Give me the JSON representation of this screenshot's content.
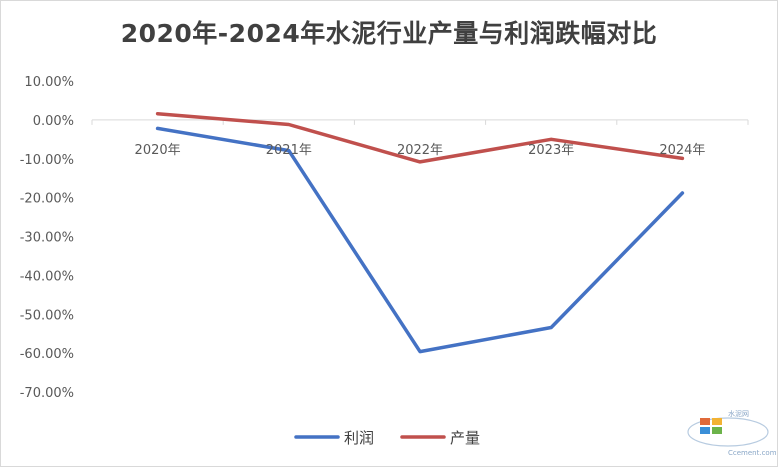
{
  "chart_data": {
    "type": "line",
    "title": "2020年-2024年水泥行业产量与利润跌幅对比",
    "categories": [
      "2020年",
      "2021年",
      "2022年",
      "2023年",
      "2024年"
    ],
    "series": [
      {
        "name": "利润",
        "values": [
          -2.2,
          -7.9,
          -59.6,
          -53.4,
          -18.8
        ]
      },
      {
        "name": "产量",
        "values": [
          1.6,
          -1.2,
          -10.8,
          -5.0,
          -9.9
        ]
      }
    ],
    "yticks": [
      "10.00%",
      "0.00%",
      "-10.00%",
      "-20.00%",
      "-30.00%",
      "-40.00%",
      "-50.00%",
      "-60.00%",
      "-70.00%"
    ],
    "ylim": [
      -70,
      10
    ],
    "grid": false,
    "legend": "bottom",
    "colors": {
      "利润": "#4472C4",
      "产量": "#C0504D"
    }
  },
  "watermark": {
    "line1": "水泥网",
    "line2": "Ccement.com"
  }
}
